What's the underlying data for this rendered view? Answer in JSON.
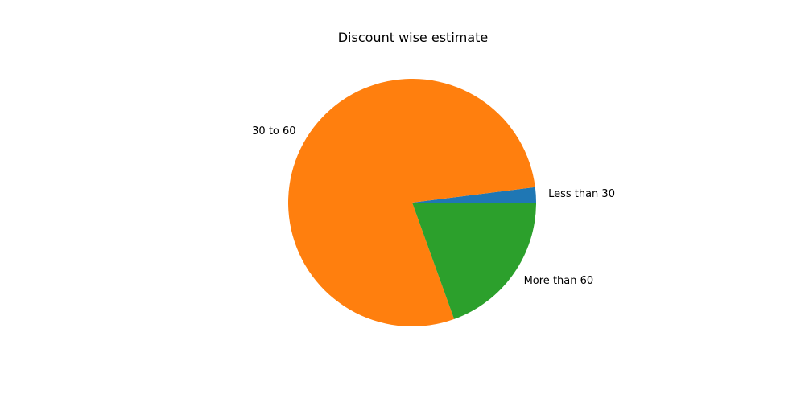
{
  "chart_data": {
    "type": "pie",
    "title": "Discount wise estimate",
    "start_angle_deg": 0,
    "direction": "counterclockwise",
    "slices": [
      {
        "label": "Less than 30",
        "value": 2,
        "color": "#1f77b4"
      },
      {
        "label": "30 to 60",
        "value": 78.5,
        "color": "#ff7f0e"
      },
      {
        "label": "More than 60",
        "value": 19.5,
        "color": "#2ca02c"
      }
    ]
  }
}
